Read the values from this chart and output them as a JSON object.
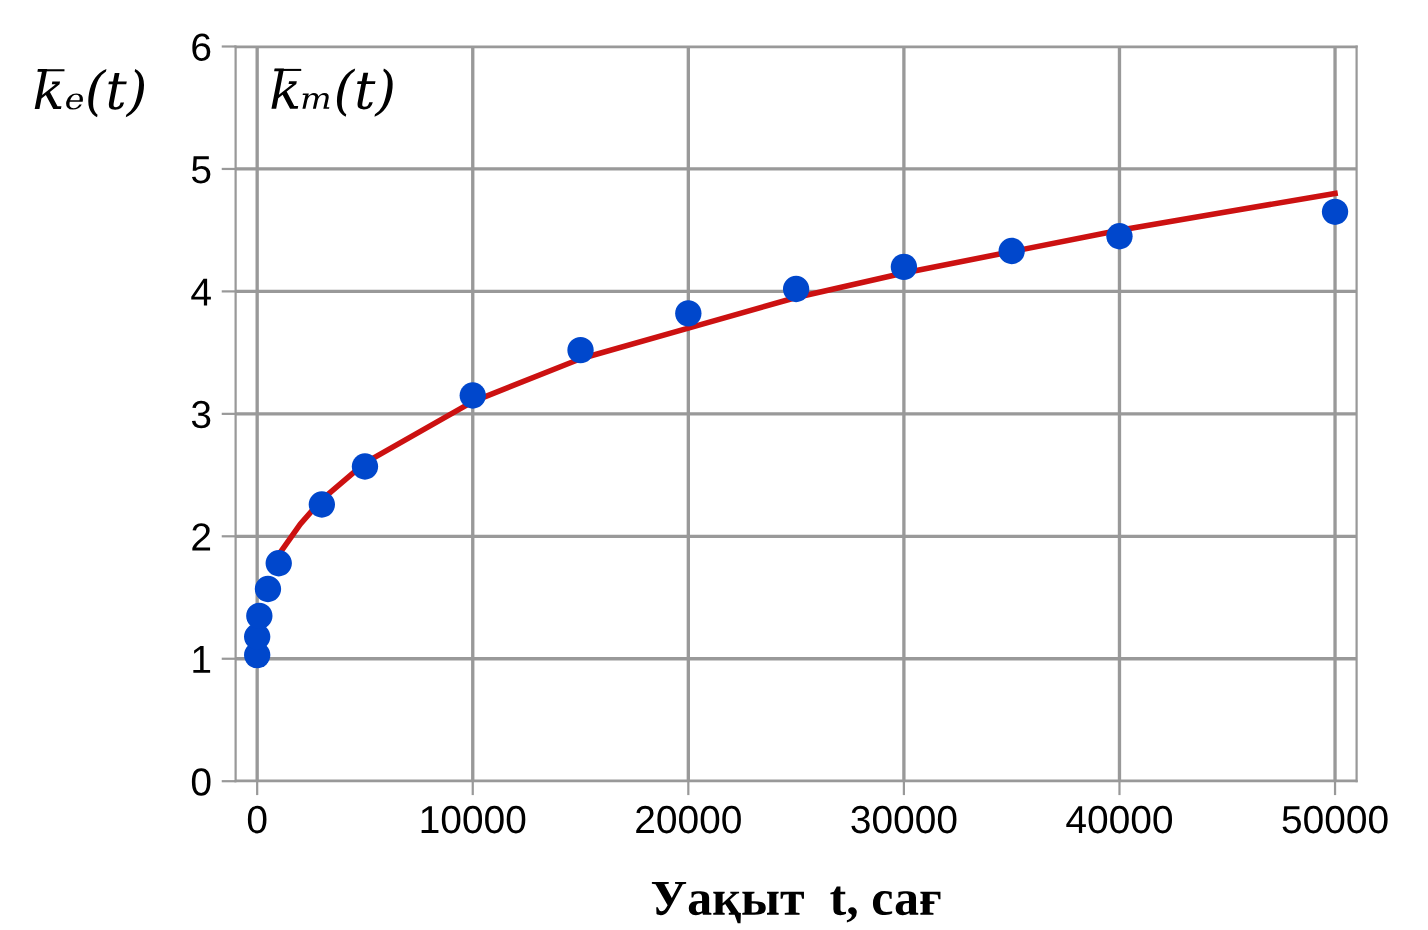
{
  "chart_data": {
    "type": "scatter",
    "xlabel": "Уақыт  t, сағ",
    "ylabel": "k̅ₑ(t)",
    "annotations": [
      "k̅ₘ(t)"
    ],
    "xlim": [
      -1000,
      51000
    ],
    "ylim": [
      0,
      6
    ],
    "xticks": [
      0,
      10000,
      20000,
      30000,
      40000,
      50000
    ],
    "yticks": [
      0,
      1,
      2,
      3,
      4,
      5,
      6
    ],
    "grid": true,
    "legend": false,
    "series": [
      {
        "marker": "circle",
        "color": "#0047cc",
        "x": [
          0,
          0,
          100,
          500,
          1000,
          3000,
          5000,
          10000,
          15000,
          20000,
          25000,
          30000,
          35000,
          40000,
          50000
        ],
        "values": [
          1.03,
          1.18,
          1.35,
          1.57,
          1.78,
          2.26,
          2.57,
          3.15,
          3.52,
          3.82,
          4.02,
          4.2,
          4.33,
          4.45,
          4.65
        ]
      },
      {
        "type": "line",
        "color": "#cc1111",
        "line_style": "solid",
        "x": [
          1000,
          2000,
          3000,
          5000,
          10000,
          15000,
          20000,
          25000,
          30000,
          40000,
          45000,
          50000
        ],
        "values": [
          1.85,
          2.1,
          2.3,
          2.6,
          3.1,
          3.45,
          3.7,
          3.95,
          4.15,
          4.5,
          4.65,
          4.8
        ]
      }
    ]
  }
}
